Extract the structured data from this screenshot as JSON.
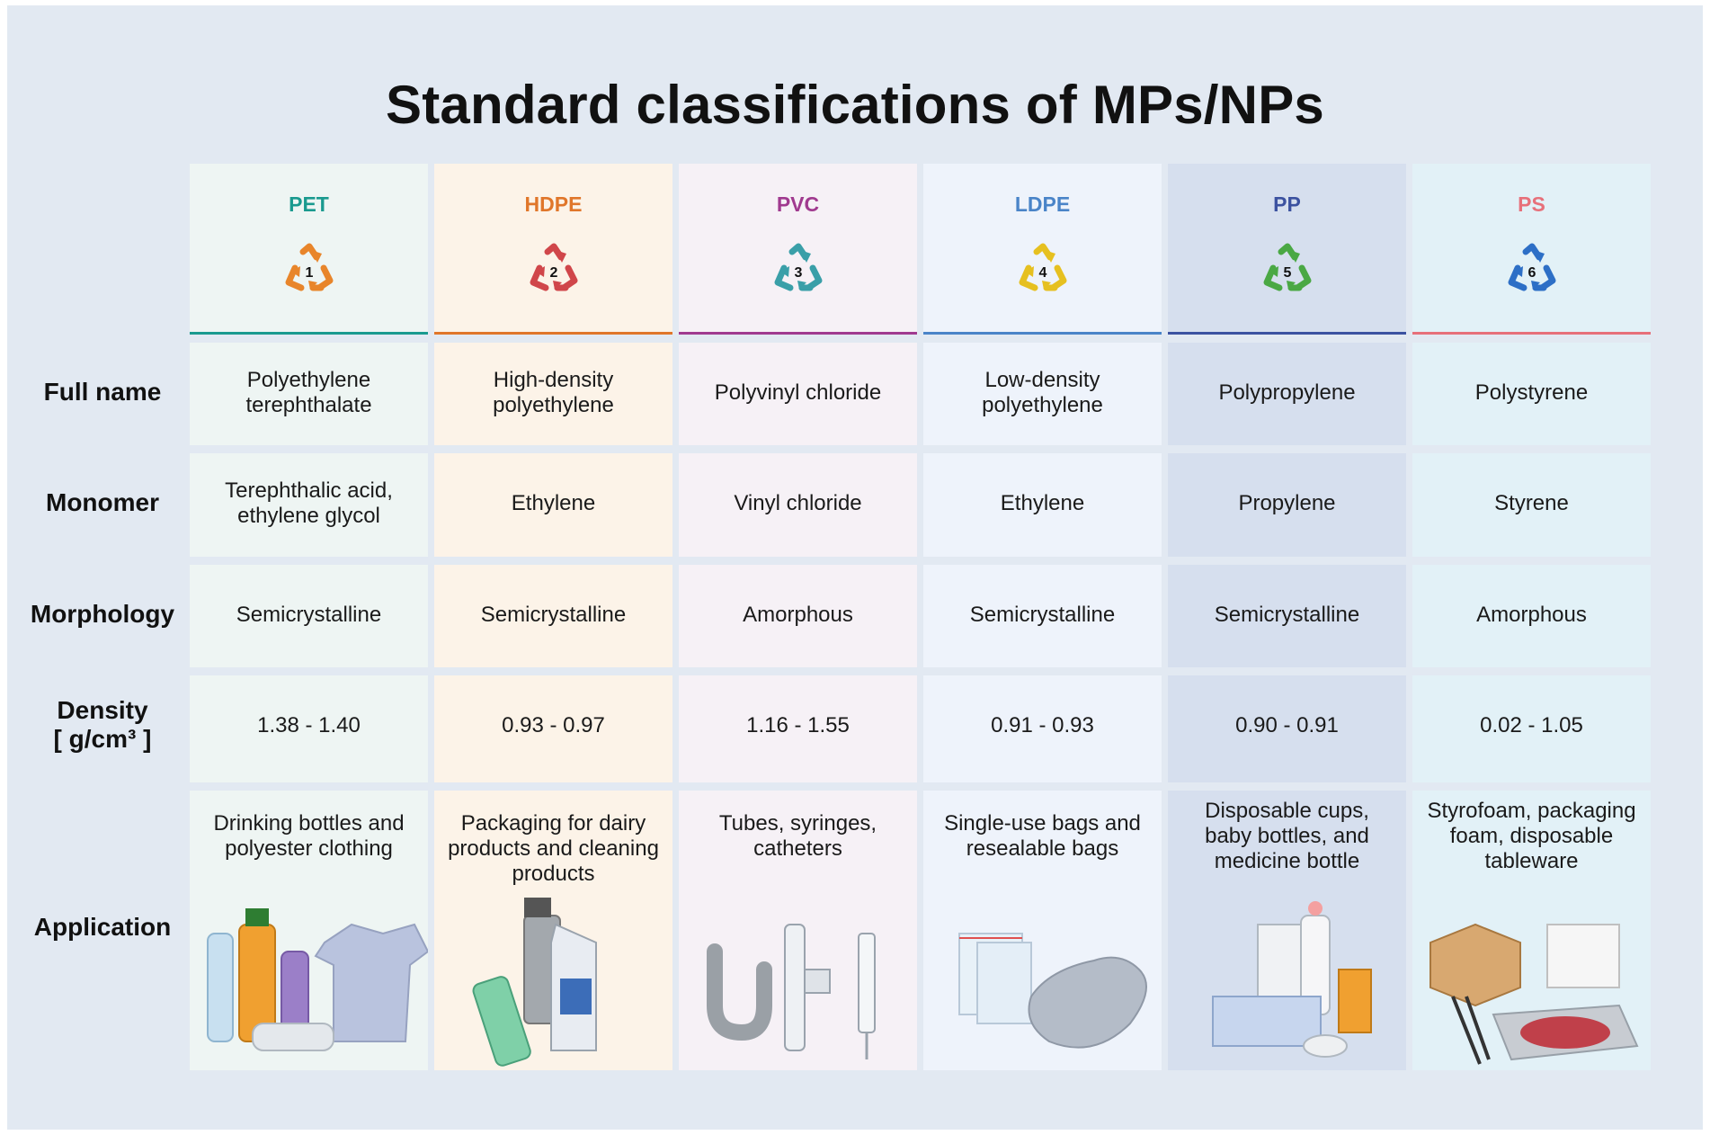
{
  "title": "Standard classifications of MPs/NPs",
  "row_labels": {
    "full_name": "Full name",
    "monomer": "Monomer",
    "morphology": "Morphology",
    "density_line1": "Density",
    "density_line2": "[ g/cm³ ]",
    "application": "Application"
  },
  "columns": [
    {
      "abbr": "PET",
      "code": "1",
      "full_name": "Polyethylene terephthalate",
      "monomer": "Terephthalic acid, ethylene glycol",
      "morphology": "Semicrystalline",
      "density": "1.38 - 1.40",
      "application": "Drinking bottles and polyester clothing",
      "color": "#1a9a8f",
      "bg": "#eef5f3",
      "icon_color": "#e8852a"
    },
    {
      "abbr": "HDPE",
      "code": "2",
      "full_name": "High-density polyethylene",
      "monomer": "Ethylene",
      "morphology": "Semicrystalline",
      "density": "0.93 - 0.97",
      "application": "Packaging for dairy products and cleaning products",
      "color": "#e0762a",
      "bg": "#fcf3e8",
      "icon_color": "#d0464a"
    },
    {
      "abbr": "PVC",
      "code": "3",
      "full_name": "Polyvinyl chloride",
      "monomer": "Vinyl chloride",
      "morphology": "Amorphous",
      "density": "1.16 - 1.55",
      "application": "Tubes, syringes, catheters",
      "color": "#a03a8f",
      "bg": "#f6f1f6",
      "icon_color": "#3a9fa8"
    },
    {
      "abbr": "LDPE",
      "code": "4",
      "full_name": "Low-density polyethylene",
      "monomer": "Ethylene",
      "morphology": "Semicrystalline",
      "density": "0.91 - 0.93",
      "application": "Single-use bags and resealable bags",
      "color": "#4a84c8",
      "bg": "#eef3fb",
      "icon_color": "#e6c020"
    },
    {
      "abbr": "PP",
      "code": "5",
      "full_name": "Polypropylene",
      "monomer": "Propylene",
      "morphology": "Semicrystalline",
      "density": "0.90 - 0.91",
      "application": "Disposable cups, baby bottles, and medicine bottle",
      "color": "#3c52a0",
      "bg": "#d6dfee",
      "icon_color": "#4aa844"
    },
    {
      "abbr": "PS",
      "code": "6",
      "full_name": "Polystyrene",
      "monomer": "Styrene",
      "morphology": "Amorphous",
      "density": "0.02 - 1.05",
      "application": "Styrofoam, packaging foam, disposable tableware",
      "color": "#e7707a",
      "bg": "#e2f1f7",
      "icon_color": "#2d6fc6"
    }
  ]
}
